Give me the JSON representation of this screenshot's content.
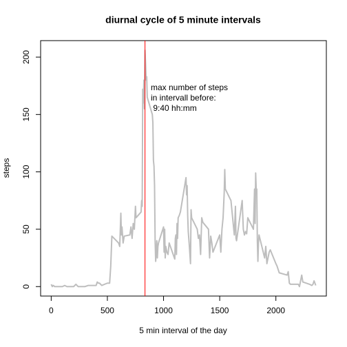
{
  "chart_data": {
    "type": "line",
    "title": "diurnal cycle of 5 minute intervals",
    "xlabel": "5 min interval of the day",
    "ylabel": "steps",
    "annotation": [
      "max number of steps",
      "in intervall before:",
      " 9:40 hh:mm"
    ],
    "annotation_color": "#ff0000",
    "vline": 835,
    "vline_color": "#ff0000",
    "xlim": [
      -94.2,
      2449.2
    ],
    "ylim": [
      -8.25,
      214.4
    ],
    "xticks": [
      0,
      500,
      1000,
      1500,
      2000
    ],
    "yticks": [
      0,
      50,
      100,
      150,
      200
    ],
    "grid": false,
    "series": [
      {
        "name": "steps",
        "color": "#bebebe",
        "x": [
          0,
          10,
          15,
          20,
          30,
          100,
          120,
          140,
          200,
          220,
          240,
          300,
          330,
          400,
          410,
          420,
          430,
          440,
          450,
          500,
          520,
          530,
          540,
          600,
          610,
          620,
          625,
          630,
          640,
          650,
          700,
          710,
          720,
          730,
          740,
          750,
          755,
          800,
          805,
          810,
          815,
          820,
          825,
          830,
          835,
          840,
          845,
          850,
          855,
          900,
          905,
          910,
          915,
          920,
          925,
          930,
          935,
          940,
          945,
          950,
          955,
          1000,
          1005,
          1010,
          1015,
          1020,
          1030,
          1040,
          1050,
          1100,
          1105,
          1110,
          1115,
          1120,
          1125,
          1130,
          1140,
          1150,
          1200,
          1205,
          1210,
          1215,
          1220,
          1230,
          1240,
          1245,
          1250,
          1300,
          1310,
          1320,
          1330,
          1340,
          1350,
          1400,
          1410,
          1420,
          1430,
          1440,
          1500,
          1510,
          1520,
          1530,
          1540,
          1545,
          1550,
          1600,
          1610,
          1620,
          1630,
          1640,
          1645,
          1650,
          1700,
          1710,
          1720,
          1730,
          1740,
          1750,
          1800,
          1810,
          1815,
          1820,
          1825,
          1830,
          1835,
          1840,
          1845,
          1850,
          1900,
          1910,
          1920,
          1930,
          1940,
          1950,
          2000,
          2010,
          2020,
          2030,
          2100,
          2110,
          2120,
          2130,
          2200,
          2210,
          2230,
          2240,
          2300,
          2320,
          2330,
          2340,
          2355
        ],
        "values": [
          2,
          0,
          1,
          1,
          0,
          0,
          1,
          0,
          0,
          2,
          0,
          0,
          1,
          1,
          4,
          3,
          3,
          2,
          1,
          3,
          3,
          18,
          44,
          38,
          35,
          64,
          45,
          52,
          38,
          44,
          45,
          52,
          42,
          55,
          50,
          70,
          60,
          65,
          75,
          70,
          172,
          160,
          180,
          155,
          206,
          195,
          180,
          183,
          165,
          150,
          143,
          110,
          105,
          88,
          40,
          22,
          30,
          40,
          25,
          35,
          38,
          52,
          30,
          50,
          25,
          35,
          30,
          28,
          38,
          24,
          42,
          45,
          28,
          55,
          42,
          60,
          62,
          65,
          95,
          80,
          88,
          62,
          48,
          35,
          20,
          67,
          60,
          50,
          42,
          45,
          28,
          60,
          56,
          50,
          25,
          44,
          38,
          30,
          45,
          30,
          50,
          60,
          82,
          102,
          85,
          75,
          65,
          55,
          45,
          70,
          42,
          40,
          75,
          50,
          45,
          48,
          46,
          60,
          50,
          85,
          55,
          99,
          85,
          85,
          40,
          22,
          38,
          45,
          25,
          35,
          20,
          25,
          30,
          32,
          20,
          18,
          15,
          12,
          10,
          13,
          3,
          2,
          2,
          0,
          10,
          4,
          2,
          1,
          2,
          5,
          1
        ]
      }
    ]
  }
}
